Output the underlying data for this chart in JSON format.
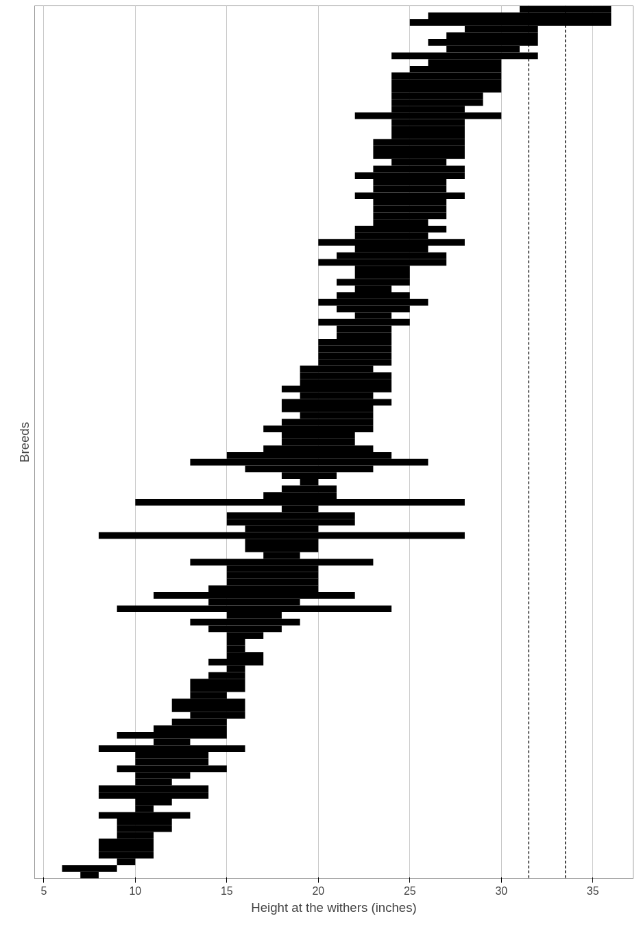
{
  "chart_data": {
    "type": "bar",
    "orientation": "horizontal",
    "xlabel": "Height at the withers (inches)",
    "ylabel": "Breeds",
    "color": "#000000",
    "categories": [
      null,
      null,
      null,
      null,
      null,
      null,
      null,
      null,
      null,
      null,
      null,
      null,
      null,
      null,
      null,
      null,
      null,
      null,
      null,
      null,
      null,
      null,
      null,
      null,
      null,
      null,
      null,
      null,
      null,
      null,
      null,
      null,
      null,
      null,
      null,
      null,
      null,
      null,
      null,
      null,
      null,
      null,
      null,
      null,
      null,
      null,
      null,
      null,
      null,
      null,
      null,
      null,
      null,
      null,
      null,
      null,
      null,
      null,
      null,
      null,
      null,
      null,
      null,
      null,
      null,
      null,
      null,
      null,
      null,
      null,
      null,
      null,
      null,
      null,
      null,
      null,
      null,
      null,
      null,
      null,
      null,
      null,
      null,
      null,
      null,
      null,
      null,
      null,
      null,
      null,
      null,
      null,
      null,
      null,
      null,
      null,
      null,
      null,
      null,
      null,
      null,
      null,
      null,
      null,
      null,
      null,
      null,
      null,
      null,
      null,
      null,
      null,
      null,
      null,
      null,
      null,
      null,
      null,
      null,
      null,
      null,
      null,
      null,
      null,
      null,
      null,
      null,
      null,
      null,
      null,
      null
    ],
    "base": [
      31,
      26,
      25,
      28,
      27,
      26,
      27,
      24,
      26,
      25,
      24,
      24,
      24,
      24,
      24,
      24,
      22,
      24,
      24,
      24,
      23,
      23,
      23,
      24,
      23,
      22,
      23,
      23,
      22,
      23,
      23,
      23,
      23,
      22,
      22,
      20,
      22,
      21,
      20,
      22,
      22,
      21,
      22,
      21,
      20,
      21,
      22,
      20,
      21,
      21,
      20,
      20,
      20,
      20,
      19,
      19,
      19,
      18,
      19,
      18,
      18,
      19,
      18,
      17,
      18,
      18,
      17,
      15,
      13,
      16,
      18,
      19,
      18,
      17,
      10,
      18,
      15,
      15,
      16,
      8,
      16,
      16,
      17,
      13,
      15,
      15,
      15,
      14,
      11,
      14,
      9,
      15,
      13,
      14,
      15,
      15,
      15,
      15,
      14,
      15,
      14,
      13,
      13,
      13,
      12,
      12,
      13,
      12,
      11,
      9,
      11,
      8,
      10,
      10,
      9,
      10,
      10,
      8,
      8,
      10,
      10,
      8,
      9,
      9,
      9,
      8,
      8,
      8,
      9,
      6,
      7
    ],
    "values": [
      5,
      10,
      11,
      4,
      5,
      6,
      4,
      8,
      4,
      5,
      6,
      6,
      6,
      5,
      5,
      4,
      8,
      4,
      4,
      4,
      5,
      5,
      5,
      3,
      5,
      6,
      4,
      4,
      6,
      4,
      4,
      4,
      3,
      5,
      4,
      8,
      4,
      6,
      7,
      3,
      3,
      4,
      2,
      4,
      6,
      4,
      2,
      5,
      3,
      3,
      4,
      4,
      4,
      4,
      4,
      5,
      5,
      6,
      4,
      6,
      5,
      4,
      5,
      6,
      4,
      4,
      6,
      9,
      13,
      7,
      3,
      1,
      3,
      4,
      18,
      2,
      7,
      7,
      4,
      20,
      4,
      4,
      2,
      10,
      5,
      5,
      5,
      6,
      11,
      5,
      15,
      3,
      6,
      4,
      2,
      1,
      1,
      2,
      3,
      1,
      2,
      3,
      3,
      2,
      4,
      4,
      3,
      3,
      4,
      6,
      2,
      8,
      4,
      4,
      6,
      3,
      2,
      6,
      6,
      2,
      1,
      5,
      3,
      3,
      2,
      3,
      3,
      3,
      1,
      3,
      1
    ],
    "xlim": [
      4.5,
      37.2
    ],
    "xticks": [
      5,
      10,
      15,
      20,
      25,
      30,
      35
    ],
    "grid": "x",
    "tick_labels": "x",
    "ref_lines": [
      {
        "axis": "x",
        "value": 31.5,
        "line_style": "dashed",
        "color": "#000000"
      },
      {
        "axis": "x",
        "value": 33.5,
        "line_style": "dashed",
        "color": "#000000"
      }
    ]
  }
}
